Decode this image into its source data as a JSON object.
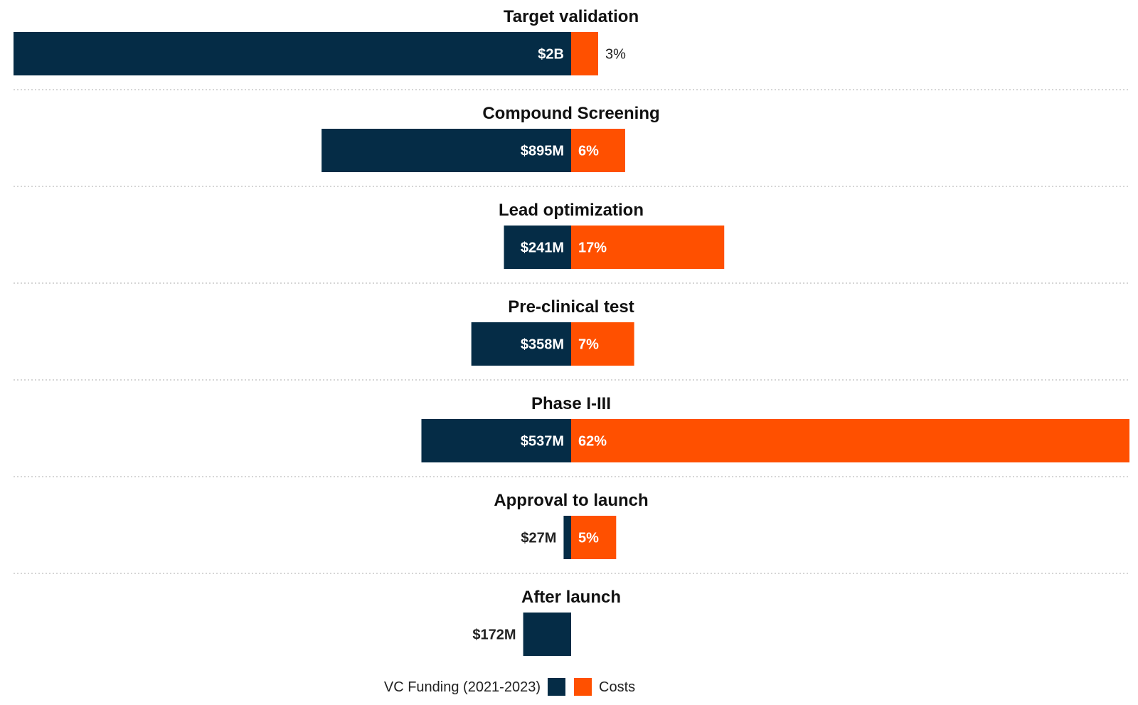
{
  "chart_data": {
    "type": "bar",
    "categories": [
      "Target validation",
      "Compound Screening",
      "Lead optimization",
      "Pre-clinical test",
      "Phase I-III",
      "Approval to launch",
      "After launch"
    ],
    "series": [
      {
        "name": "VC Funding (2021-2023)",
        "color": "#052c46",
        "values": [
          2000,
          895,
          241,
          358,
          537,
          27,
          172
        ],
        "unit": "$M",
        "labels": [
          "$2B",
          "$895M",
          "$241M",
          "$358M",
          "$537M",
          "$27M",
          "$172M"
        ]
      },
      {
        "name": "Costs",
        "color": "#ff5000",
        "values": [
          3,
          6,
          17,
          7,
          62,
          5,
          null
        ],
        "unit": "%",
        "labels": [
          "3%",
          "6%",
          "17%",
          "7%",
          "62%",
          "5%",
          ""
        ]
      }
    ],
    "legend": {
      "position": "bottom-center",
      "items": [
        {
          "label": "VC Funding (2021-2023)",
          "color": "#052c46"
        },
        {
          "label": "Costs",
          "color": "#ff5000"
        }
      ]
    },
    "grid": false
  }
}
